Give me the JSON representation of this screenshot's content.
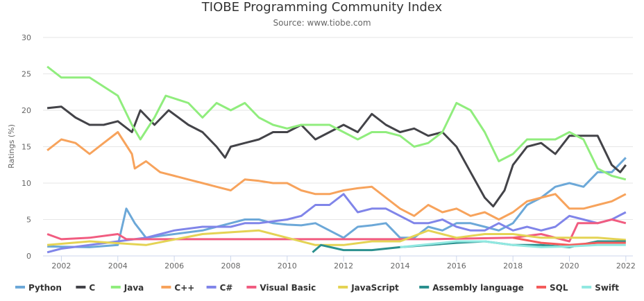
{
  "chart_data": {
    "type": "line",
    "title": "TIOBE Programming Community Index",
    "subtitle": "Source: www.tiobe.com",
    "xlabel": "",
    "ylabel": "Ratings (%)",
    "xlim": [
      2001.35,
      2022.25
    ],
    "ylim": [
      0,
      30
    ],
    "x_ticks": [
      2002,
      2004,
      2006,
      2008,
      2010,
      2012,
      2014,
      2016,
      2018,
      2020,
      2022
    ],
    "y_ticks": [
      0,
      5,
      10,
      15,
      20,
      25,
      30
    ],
    "grid": "horizontal",
    "legend": "bottom",
    "series": [
      {
        "name": "Python",
        "color": "#6ca8d8",
        "points": [
          [
            2001.5,
            1.3
          ],
          [
            2003,
            1.2
          ],
          [
            2004,
            1.5
          ],
          [
            2004.3,
            6.5
          ],
          [
            2004.6,
            4.5
          ],
          [
            2005,
            2.5
          ],
          [
            2006,
            3
          ],
          [
            2007,
            3.5
          ],
          [
            2008,
            4.5
          ],
          [
            2008.5,
            5
          ],
          [
            2009,
            5
          ],
          [
            2009.5,
            4.5
          ],
          [
            2010,
            4.3
          ],
          [
            2010.5,
            4.2
          ],
          [
            2011,
            4.5
          ],
          [
            2011.5,
            3.5
          ],
          [
            2012,
            2.5
          ],
          [
            2012.5,
            4
          ],
          [
            2013,
            4.2
          ],
          [
            2013.5,
            4.5
          ],
          [
            2014,
            2.5
          ],
          [
            2014.5,
            2.5
          ],
          [
            2015,
            4
          ],
          [
            2015.5,
            3.5
          ],
          [
            2016,
            4.5
          ],
          [
            2016.5,
            4.5
          ],
          [
            2017,
            4
          ],
          [
            2017.5,
            3.5
          ],
          [
            2018,
            4.5
          ],
          [
            2018.5,
            7
          ],
          [
            2019,
            8
          ],
          [
            2019.5,
            9.5
          ],
          [
            2020,
            10
          ],
          [
            2020.5,
            9.5
          ],
          [
            2021,
            11.5
          ],
          [
            2021.5,
            11.5
          ],
          [
            2022,
            13.5
          ]
        ]
      },
      {
        "name": "C",
        "color": "#434348",
        "points": [
          [
            2001.5,
            20.3
          ],
          [
            2002,
            20.5
          ],
          [
            2002.5,
            19
          ],
          [
            2003,
            18
          ],
          [
            2003.5,
            18
          ],
          [
            2004,
            18.5
          ],
          [
            2004.5,
            17
          ],
          [
            2004.8,
            20
          ],
          [
            2005.3,
            18
          ],
          [
            2005.8,
            20
          ],
          [
            2006.5,
            18
          ],
          [
            2007,
            17
          ],
          [
            2007.5,
            15
          ],
          [
            2007.8,
            13.5
          ],
          [
            2008,
            15
          ],
          [
            2008.5,
            15.5
          ],
          [
            2009,
            16
          ],
          [
            2009.5,
            17
          ],
          [
            2010,
            17
          ],
          [
            2010.5,
            18
          ],
          [
            2011,
            16
          ],
          [
            2011.5,
            17
          ],
          [
            2012,
            18
          ],
          [
            2012.5,
            17
          ],
          [
            2013,
            19.5
          ],
          [
            2013.5,
            18
          ],
          [
            2014,
            17
          ],
          [
            2014.5,
            17.5
          ],
          [
            2015,
            16.5
          ],
          [
            2015.5,
            17
          ],
          [
            2016,
            15
          ],
          [
            2016.5,
            11.5
          ],
          [
            2017,
            8
          ],
          [
            2017.3,
            6.8
          ],
          [
            2017.7,
            9
          ],
          [
            2018,
            12.5
          ],
          [
            2018.5,
            15
          ],
          [
            2019,
            15.5
          ],
          [
            2019.5,
            14
          ],
          [
            2020,
            16.5
          ],
          [
            2020.5,
            16.5
          ],
          [
            2021,
            16.5
          ],
          [
            2021.5,
            12.5
          ],
          [
            2021.8,
            11.5
          ],
          [
            2022,
            12.5
          ]
        ]
      },
      {
        "name": "Java",
        "color": "#90ed7d",
        "points": [
          [
            2001.5,
            26
          ],
          [
            2002,
            24.5
          ],
          [
            2003,
            24.5
          ],
          [
            2004,
            22
          ],
          [
            2004.5,
            18
          ],
          [
            2004.8,
            16
          ],
          [
            2005.3,
            19
          ],
          [
            2005.7,
            22
          ],
          [
            2006.5,
            21
          ],
          [
            2007,
            19
          ],
          [
            2007.5,
            21
          ],
          [
            2008,
            20
          ],
          [
            2008.5,
            21
          ],
          [
            2009,
            19
          ],
          [
            2009.5,
            18
          ],
          [
            2010,
            17.5
          ],
          [
            2010.5,
            18
          ],
          [
            2011,
            18
          ],
          [
            2011.5,
            18
          ],
          [
            2012,
            17
          ],
          [
            2012.5,
            16
          ],
          [
            2013,
            17
          ],
          [
            2013.5,
            17
          ],
          [
            2014,
            16.5
          ],
          [
            2014.5,
            15
          ],
          [
            2015,
            15.5
          ],
          [
            2015.5,
            17
          ],
          [
            2016,
            21
          ],
          [
            2016.5,
            20
          ],
          [
            2017,
            17
          ],
          [
            2017.5,
            13
          ],
          [
            2018,
            14
          ],
          [
            2018.5,
            16
          ],
          [
            2019,
            16
          ],
          [
            2019.5,
            16
          ],
          [
            2020,
            17
          ],
          [
            2020.5,
            16
          ],
          [
            2021,
            12
          ],
          [
            2021.5,
            11
          ],
          [
            2022,
            10.5
          ]
        ]
      },
      {
        "name": "C++",
        "color": "#f7a35c",
        "points": [
          [
            2001.5,
            14.5
          ],
          [
            2002,
            16
          ],
          [
            2002.5,
            15.5
          ],
          [
            2003,
            14
          ],
          [
            2003.5,
            15.5
          ],
          [
            2004,
            17
          ],
          [
            2004.5,
            14
          ],
          [
            2004.6,
            12
          ],
          [
            2005,
            13
          ],
          [
            2005.5,
            11.5
          ],
          [
            2006,
            11
          ],
          [
            2006.5,
            10.5
          ],
          [
            2007,
            10
          ],
          [
            2007.5,
            9.5
          ],
          [
            2008,
            9
          ],
          [
            2008.5,
            10.5
          ],
          [
            2009,
            10.3
          ],
          [
            2009.5,
            10
          ],
          [
            2010,
            10
          ],
          [
            2010.5,
            9
          ],
          [
            2011,
            8.5
          ],
          [
            2011.5,
            8.5
          ],
          [
            2012,
            9
          ],
          [
            2012.5,
            9.3
          ],
          [
            2013,
            9.5
          ],
          [
            2013.5,
            8
          ],
          [
            2014,
            6.5
          ],
          [
            2014.5,
            5.5
          ],
          [
            2015,
            7
          ],
          [
            2015.5,
            6
          ],
          [
            2016,
            6.5
          ],
          [
            2016.5,
            5.5
          ],
          [
            2017,
            6
          ],
          [
            2017.5,
            5
          ],
          [
            2018,
            6
          ],
          [
            2018.5,
            7.5
          ],
          [
            2019,
            8
          ],
          [
            2019.5,
            8.5
          ],
          [
            2020,
            6.5
          ],
          [
            2020.5,
            6.5
          ],
          [
            2021,
            7
          ],
          [
            2021.5,
            7.5
          ],
          [
            2022,
            8.5
          ]
        ]
      },
      {
        "name": "C#",
        "color": "#8085e9",
        "points": [
          [
            2001.5,
            0.5
          ],
          [
            2002,
            1
          ],
          [
            2003,
            1.5
          ],
          [
            2004,
            2
          ],
          [
            2005,
            2.5
          ],
          [
            2006,
            3.5
          ],
          [
            2007,
            4
          ],
          [
            2008,
            4
          ],
          [
            2008.5,
            4.5
          ],
          [
            2009,
            4.5
          ],
          [
            2010,
            5
          ],
          [
            2010.5,
            5.5
          ],
          [
            2011,
            7
          ],
          [
            2011.5,
            7
          ],
          [
            2012,
            8.5
          ],
          [
            2012.5,
            6
          ],
          [
            2013,
            6.5
          ],
          [
            2013.5,
            6.5
          ],
          [
            2014,
            5.5
          ],
          [
            2014.5,
            4.5
          ],
          [
            2015,
            4.5
          ],
          [
            2015.5,
            5
          ],
          [
            2016,
            4
          ],
          [
            2016.5,
            3.5
          ],
          [
            2017,
            3.5
          ],
          [
            2017.5,
            4.5
          ],
          [
            2018,
            3.5
          ],
          [
            2018.5,
            4
          ],
          [
            2019,
            3.5
          ],
          [
            2019.5,
            4
          ],
          [
            2020,
            5.5
          ],
          [
            2020.5,
            5
          ],
          [
            2021,
            4.5
          ],
          [
            2021.5,
            5
          ],
          [
            2022,
            6
          ]
        ]
      },
      {
        "name": "Visual Basic",
        "color": "#f15c80",
        "points": [
          [
            2001.5,
            3
          ],
          [
            2002,
            2.3
          ],
          [
            2003,
            2.5
          ],
          [
            2004,
            3
          ],
          [
            2004.3,
            2.3
          ],
          [
            2011,
            2.3
          ],
          [
            2015,
            2.3
          ],
          [
            2018,
            2.5
          ],
          [
            2019,
            3
          ],
          [
            2020,
            2
          ],
          [
            2020.3,
            4.5
          ],
          [
            2020.5,
            4.5
          ],
          [
            2021,
            4.5
          ],
          [
            2021.5,
            5
          ],
          [
            2022,
            4.5
          ]
        ]
      },
      {
        "name": "JavaScript",
        "color": "#e4d354",
        "points": [
          [
            2001.5,
            1.5
          ],
          [
            2003,
            2
          ],
          [
            2005,
            1.5
          ],
          [
            2007,
            3
          ],
          [
            2009,
            3.5
          ],
          [
            2010,
            2.5
          ],
          [
            2011,
            1.5
          ],
          [
            2012,
            1.5
          ],
          [
            2013,
            2
          ],
          [
            2014,
            2
          ],
          [
            2015,
            3.5
          ],
          [
            2016,
            2.5
          ],
          [
            2017,
            3
          ],
          [
            2018,
            3
          ],
          [
            2019,
            2.5
          ],
          [
            2020,
            2.5
          ],
          [
            2021,
            2.5
          ],
          [
            2022,
            2.2
          ]
        ]
      },
      {
        "name": "Assembly language",
        "color": "#2b908f",
        "points": [
          [
            2010.9,
            0.5
          ],
          [
            2011.2,
            1.5
          ],
          [
            2012,
            0.8
          ],
          [
            2013,
            0.8
          ],
          [
            2014,
            1.2
          ],
          [
            2015,
            1.5
          ],
          [
            2016,
            1.8
          ],
          [
            2017,
            2
          ],
          [
            2018,
            1.5
          ],
          [
            2019,
            1.5
          ],
          [
            2020,
            1.2
          ],
          [
            2021,
            2
          ],
          [
            2022,
            2
          ]
        ]
      },
      {
        "name": "SQL",
        "color": "#f45b5b",
        "points": [
          [
            2018,
            2.5
          ],
          [
            2019,
            1.8
          ],
          [
            2020,
            1.5
          ],
          [
            2021,
            1.8
          ],
          [
            2022,
            1.8
          ]
        ]
      },
      {
        "name": "Swift",
        "color": "#91e8e1",
        "points": [
          [
            2014,
            1.2
          ],
          [
            2016,
            2
          ],
          [
            2017,
            2
          ],
          [
            2018,
            1.5
          ],
          [
            2019,
            1.2
          ],
          [
            2020,
            1.3
          ],
          [
            2021,
            1.5
          ],
          [
            2022,
            1.5
          ]
        ]
      }
    ]
  }
}
